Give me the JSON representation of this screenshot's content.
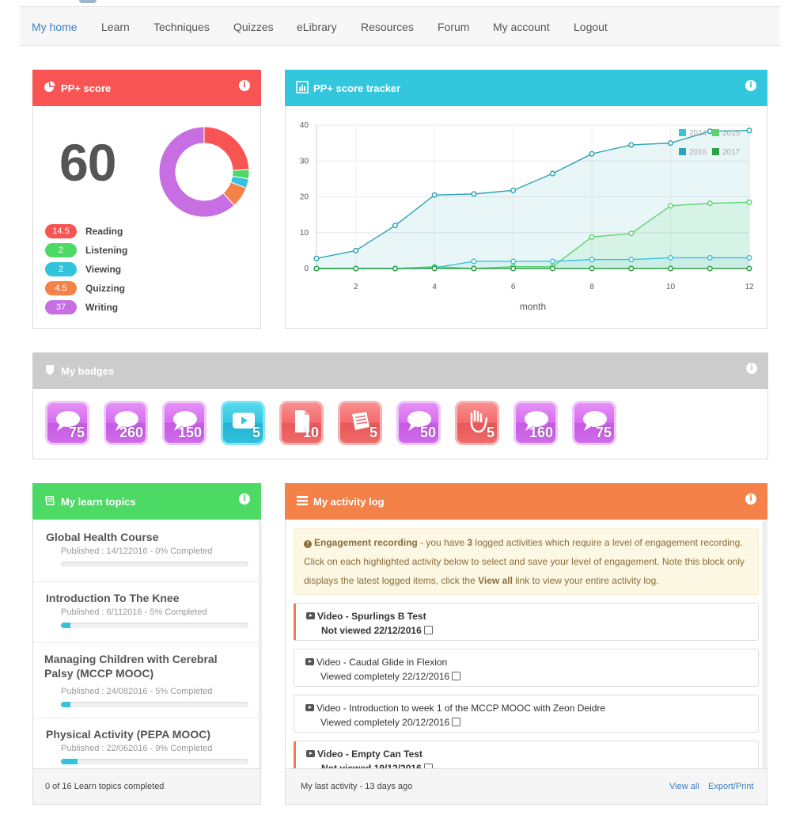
{
  "nav": {
    "items": [
      "My home",
      "Learn",
      "Techniques",
      "Quizzes",
      "eLibrary",
      "Resources",
      "Forum",
      "My account",
      "Logout"
    ],
    "active": "My home"
  },
  "score_panel": {
    "title": "PP+ score",
    "score": "60",
    "header_color": "#f95454",
    "legend": [
      {
        "value": "14.5",
        "label": "Reading",
        "color": "#f95454"
      },
      {
        "value": "2",
        "label": "Listening",
        "color": "#4cd964"
      },
      {
        "value": "2",
        "label": "Viewing",
        "color": "#33c3dc"
      },
      {
        "value": "4.5",
        "label": "Quizzing",
        "color": "#f38148"
      },
      {
        "value": "37",
        "label": "Writing",
        "color": "#c76ee2"
      }
    ]
  },
  "tracker_panel": {
    "title": "PP+ score tracker",
    "header_color": "#33c7dd"
  },
  "chart_data": {
    "type": "area",
    "xlabel": "month",
    "ylabel": "",
    "xlim": [
      1,
      12
    ],
    "ylim": [
      0,
      40
    ],
    "x_ticks": [
      "2",
      "4",
      "6",
      "8",
      "10",
      "12"
    ],
    "y_ticks": [
      "0",
      "10",
      "20",
      "30",
      "40"
    ],
    "x": [
      1,
      2,
      3,
      4,
      5,
      6,
      7,
      8,
      9,
      10,
      11,
      12
    ],
    "legend": [
      "2014",
      "2015",
      "2016",
      "2017"
    ],
    "legend_position": "top-right",
    "grid": true,
    "series": [
      {
        "name": "2016",
        "color": "#2ba3b5",
        "values": [
          2.8,
          5,
          12,
          20.5,
          20.8,
          21.8,
          26.5,
          32,
          34.5,
          35,
          38.3,
          38.5
        ]
      },
      {
        "name": "2015",
        "color": "#5dd46e",
        "values": [
          0,
          0,
          0,
          0.5,
          0,
          0.5,
          0.5,
          8.8,
          9.8,
          17.5,
          18.2,
          18.5
        ]
      },
      {
        "name": "2014",
        "color": "#35c4dc",
        "values": [
          0,
          0,
          0,
          0.2,
          2,
          2,
          2,
          2.5,
          2.5,
          3,
          3,
          3
        ]
      },
      {
        "name": "2017",
        "color": "#2ca144",
        "values": [
          0,
          0,
          0,
          0,
          0,
          0,
          0,
          0,
          0,
          0,
          0,
          0
        ]
      }
    ]
  },
  "badges_panel": {
    "title": "My badges",
    "header_color": "#cccccc",
    "badges": [
      {
        "count": "75",
        "icon": "speech-bubble-icon",
        "theme": "purple"
      },
      {
        "count": "260",
        "icon": "speech-bubble-icon",
        "theme": "purple"
      },
      {
        "count": "150",
        "icon": "speech-bubble-icon",
        "theme": "purple"
      },
      {
        "count": "5",
        "icon": "video-play-icon",
        "theme": "cyan"
      },
      {
        "count": "10",
        "icon": "document-icon",
        "theme": "red"
      },
      {
        "count": "5",
        "icon": "book-icon",
        "theme": "red"
      },
      {
        "count": "50",
        "icon": "speech-bubble-icon",
        "theme": "purple"
      },
      {
        "count": "5",
        "icon": "hand-icon",
        "theme": "red"
      },
      {
        "count": "160",
        "icon": "speech-bubble-icon",
        "theme": "purple"
      },
      {
        "count": "75",
        "icon": "speech-bubble-icon",
        "theme": "purple"
      }
    ]
  },
  "topics_panel": {
    "title": "My learn topics",
    "header_color": "#4cd964",
    "footer": "0 of 16 Learn topics completed",
    "topics": [
      {
        "title": "Global Health Course",
        "meta": "Published : 14/122016 - 0% Completed",
        "progress": 0
      },
      {
        "title": "Introduction To The Knee",
        "meta": "Published : 6/112016 - 5% Completed",
        "progress": 0.05
      },
      {
        "title": "Managing Children with Cerebral Palsy (MCCP MOOC)",
        "meta": "Published : 24/082016 - 5% Completed",
        "progress": 0.05
      },
      {
        "title": "Physical Activity (PEPA MOOC)",
        "meta": "Published : 22/062016 - 9% Completed",
        "progress": 0.09
      }
    ]
  },
  "activity_panel": {
    "title": "My activity log",
    "header_color": "#f38148",
    "notice": {
      "lead": "Engagement recording",
      "p1": " - you have ",
      "count": "3",
      "p2": " logged activities which require a level of engagement recording. Click on each highlighted activity below to select and save your level of engagement. Note this block only displays the latest logged items, click the ",
      "link": "View all",
      "p3": " link to view your entire activity log."
    },
    "items": [
      {
        "title": "Video - Spurlings B Test",
        "status": "Not viewed 22/12/2016",
        "highlight": true
      },
      {
        "title": "Video - Caudal Glide in Flexion",
        "status": "Viewed completely 22/12/2016",
        "highlight": false
      },
      {
        "title": "Video - Introduction to week 1 of the MCCP MOOC with Zeon Deidre",
        "status": "Viewed completely 20/12/2016",
        "highlight": false
      },
      {
        "title": "Video - Empty Can Test",
        "status": "Not viewed 19/12/2016",
        "highlight": true
      }
    ],
    "footer": "My last activity - 13 days ago",
    "view_all": "View all",
    "export": "Export/Print"
  }
}
